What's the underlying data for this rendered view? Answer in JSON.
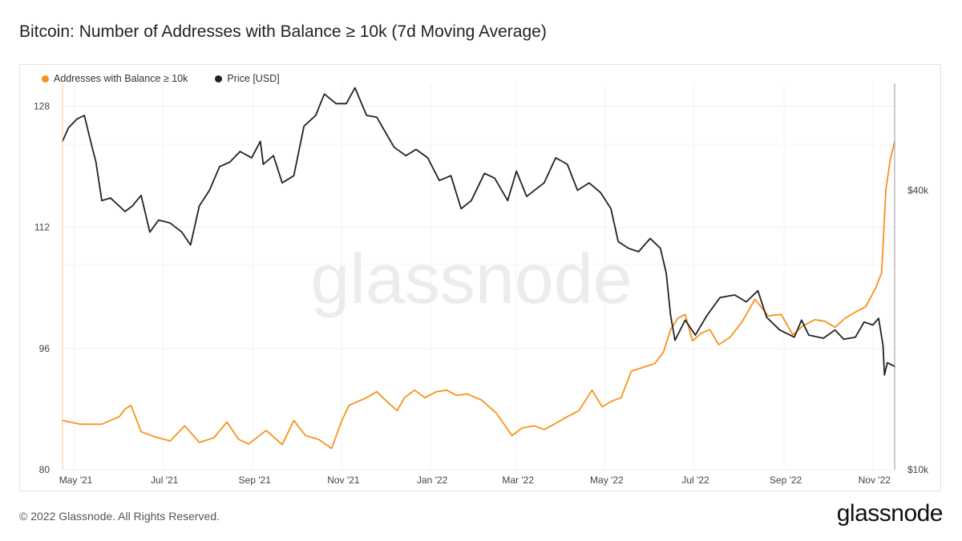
{
  "title": "Bitcoin: Number of Addresses with Balance ≥ 10k (7d Moving Average)",
  "footer": {
    "copyright": "© 2022 Glassnode. All Rights Reserved.",
    "logo": "glassnode"
  },
  "watermark": "glassnode",
  "chart_data": {
    "type": "line",
    "title": "Bitcoin: Number of Addresses with Balance ≥ 10k (7d Moving Average)",
    "legend_position": "top-left",
    "grid": true,
    "x_ticks": [
      "May '21",
      "Jul '21",
      "Sep '21",
      "Nov '21",
      "Jan '22",
      "Mar '22",
      "May '22",
      "Jul '22",
      "Sep '22",
      "Nov '22"
    ],
    "x_range": [
      "2021-04-23",
      "2022-11-16"
    ],
    "y_left": {
      "ticks": [
        "80",
        "96",
        "112",
        "128"
      ],
      "range": [
        80,
        131
      ]
    },
    "y_right": {
      "ticks": [
        "$10k",
        "$40k"
      ],
      "scale": "log",
      "range": [
        10000,
        68000
      ]
    },
    "series": [
      {
        "name": "Addresses with Balance ≥ 10k",
        "axis": "left",
        "color": "#f7931a",
        "points": [
          [
            "2021-04-23",
            86.5
          ],
          [
            "2021-05-05",
            86.0
          ],
          [
            "2021-05-20",
            86.0
          ],
          [
            "2021-06-01",
            87.0
          ],
          [
            "2021-06-05",
            88.0
          ],
          [
            "2021-06-09",
            88.5
          ],
          [
            "2021-06-16",
            85.0
          ],
          [
            "2021-06-26",
            84.3
          ],
          [
            "2021-07-06",
            83.8
          ],
          [
            "2021-07-16",
            85.8
          ],
          [
            "2021-07-26",
            83.6
          ],
          [
            "2021-08-05",
            84.2
          ],
          [
            "2021-08-14",
            86.3
          ],
          [
            "2021-08-22",
            84.0
          ],
          [
            "2021-08-29",
            83.4
          ],
          [
            "2021-09-10",
            85.2
          ],
          [
            "2021-09-21",
            83.3
          ],
          [
            "2021-09-29",
            86.5
          ],
          [
            "2021-10-07",
            84.5
          ],
          [
            "2021-10-16",
            84.0
          ],
          [
            "2021-10-25",
            82.8
          ],
          [
            "2021-11-01",
            86.5
          ],
          [
            "2021-11-06",
            88.5
          ],
          [
            "2021-11-18",
            89.5
          ],
          [
            "2021-11-25",
            90.3
          ],
          [
            "2021-12-03",
            88.8
          ],
          [
            "2021-12-09",
            87.8
          ],
          [
            "2021-12-14",
            89.5
          ],
          [
            "2021-12-21",
            90.5
          ],
          [
            "2021-12-28",
            89.5
          ],
          [
            "2022-01-05",
            90.3
          ],
          [
            "2022-01-12",
            90.5
          ],
          [
            "2022-01-19",
            89.8
          ],
          [
            "2022-01-26",
            90.0
          ],
          [
            "2022-02-05",
            89.2
          ],
          [
            "2022-02-15",
            87.5
          ],
          [
            "2022-02-26",
            84.5
          ],
          [
            "2022-03-05",
            85.5
          ],
          [
            "2022-03-13",
            85.8
          ],
          [
            "2022-03-20",
            85.3
          ],
          [
            "2022-03-27",
            86.0
          ],
          [
            "2022-04-05",
            87.0
          ],
          [
            "2022-04-13",
            87.8
          ],
          [
            "2022-04-22",
            90.5
          ],
          [
            "2022-04-29",
            88.3
          ],
          [
            "2022-05-05",
            89.0
          ],
          [
            "2022-05-12",
            89.5
          ],
          [
            "2022-05-19",
            93.0
          ],
          [
            "2022-05-27",
            93.5
          ],
          [
            "2022-06-04",
            94.0
          ],
          [
            "2022-06-10",
            95.5
          ],
          [
            "2022-06-15",
            98.5
          ],
          [
            "2022-06-20",
            100.0
          ],
          [
            "2022-06-25",
            100.5
          ],
          [
            "2022-06-30",
            97.0
          ],
          [
            "2022-07-06",
            98.0
          ],
          [
            "2022-07-12",
            98.5
          ],
          [
            "2022-07-18",
            96.5
          ],
          [
            "2022-07-26",
            97.5
          ],
          [
            "2022-08-03",
            99.5
          ],
          [
            "2022-08-12",
            102.5
          ],
          [
            "2022-08-21",
            100.3
          ],
          [
            "2022-08-30",
            100.5
          ],
          [
            "2022-09-07",
            97.8
          ],
          [
            "2022-09-14",
            99.0
          ],
          [
            "2022-09-22",
            99.8
          ],
          [
            "2022-09-29",
            99.6
          ],
          [
            "2022-10-06",
            98.8
          ],
          [
            "2022-10-13",
            100.0
          ],
          [
            "2022-10-20",
            100.8
          ],
          [
            "2022-10-27",
            101.5
          ],
          [
            "2022-11-03",
            104.0
          ],
          [
            "2022-11-07",
            106.0
          ],
          [
            "2022-11-10",
            117.0
          ],
          [
            "2022-11-13",
            121.0
          ],
          [
            "2022-11-16",
            123.3
          ]
        ]
      },
      {
        "name": "Price [USD]",
        "axis": "right",
        "color": "#222222",
        "points": [
          [
            "2021-04-23",
            51000
          ],
          [
            "2021-04-27",
            54500
          ],
          [
            "2021-05-03",
            57000
          ],
          [
            "2021-05-08",
            58000
          ],
          [
            "2021-05-13",
            50000
          ],
          [
            "2021-05-16",
            46000
          ],
          [
            "2021-05-20",
            38000
          ],
          [
            "2021-05-26",
            38500
          ],
          [
            "2021-06-05",
            36000
          ],
          [
            "2021-06-10",
            37000
          ],
          [
            "2021-06-16",
            39000
          ],
          [
            "2021-06-22",
            32500
          ],
          [
            "2021-06-28",
            34500
          ],
          [
            "2021-07-06",
            34000
          ],
          [
            "2021-07-14",
            32500
          ],
          [
            "2021-07-20",
            30500
          ],
          [
            "2021-07-26",
            37000
          ],
          [
            "2021-08-02",
            40000
          ],
          [
            "2021-08-09",
            45000
          ],
          [
            "2021-08-16",
            46000
          ],
          [
            "2021-08-23",
            48500
          ],
          [
            "2021-08-31",
            47000
          ],
          [
            "2021-09-06",
            51000
          ],
          [
            "2021-09-08",
            45500
          ],
          [
            "2021-09-15",
            47500
          ],
          [
            "2021-09-21",
            41500
          ],
          [
            "2021-09-29",
            43000
          ],
          [
            "2021-10-06",
            55000
          ],
          [
            "2021-10-14",
            58000
          ],
          [
            "2021-10-20",
            64500
          ],
          [
            "2021-10-28",
            61500
          ],
          [
            "2021-11-04",
            61500
          ],
          [
            "2021-11-10",
            66500
          ],
          [
            "2021-11-18",
            58000
          ],
          [
            "2021-11-25",
            57500
          ],
          [
            "2021-12-03",
            52000
          ],
          [
            "2021-12-07",
            49500
          ],
          [
            "2021-12-15",
            47500
          ],
          [
            "2021-12-22",
            49000
          ],
          [
            "2021-12-30",
            47000
          ],
          [
            "2022-01-07",
            42000
          ],
          [
            "2022-01-15",
            43000
          ],
          [
            "2022-01-22",
            36500
          ],
          [
            "2022-01-29",
            38000
          ],
          [
            "2022-02-07",
            43500
          ],
          [
            "2022-02-14",
            42500
          ],
          [
            "2022-02-23",
            38000
          ],
          [
            "2022-03-01",
            44000
          ],
          [
            "2022-03-08",
            38800
          ],
          [
            "2022-03-20",
            41500
          ],
          [
            "2022-03-28",
            47000
          ],
          [
            "2022-04-05",
            45500
          ],
          [
            "2022-04-12",
            40000
          ],
          [
            "2022-04-20",
            41500
          ],
          [
            "2022-04-28",
            39500
          ],
          [
            "2022-05-05",
            36500
          ],
          [
            "2022-05-10",
            31000
          ],
          [
            "2022-05-17",
            30000
          ],
          [
            "2022-05-24",
            29500
          ],
          [
            "2022-06-01",
            31500
          ],
          [
            "2022-06-08",
            30000
          ],
          [
            "2022-06-12",
            26500
          ],
          [
            "2022-06-15",
            21500
          ],
          [
            "2022-06-18",
            19000
          ],
          [
            "2022-06-25",
            21000
          ],
          [
            "2022-07-02",
            19500
          ],
          [
            "2022-07-10",
            21500
          ],
          [
            "2022-07-19",
            23500
          ],
          [
            "2022-07-29",
            23800
          ],
          [
            "2022-08-06",
            23000
          ],
          [
            "2022-08-14",
            24300
          ],
          [
            "2022-08-20",
            21300
          ],
          [
            "2022-08-29",
            20000
          ],
          [
            "2022-09-08",
            19300
          ],
          [
            "2022-09-13",
            21000
          ],
          [
            "2022-09-18",
            19500
          ],
          [
            "2022-09-28",
            19200
          ],
          [
            "2022-10-06",
            20000
          ],
          [
            "2022-10-12",
            19100
          ],
          [
            "2022-10-20",
            19300
          ],
          [
            "2022-10-26",
            20800
          ],
          [
            "2022-11-01",
            20500
          ],
          [
            "2022-11-05",
            21200
          ],
          [
            "2022-11-08",
            18500
          ],
          [
            "2022-11-09",
            16000
          ],
          [
            "2022-11-11",
            17000
          ],
          [
            "2022-11-16",
            16700
          ]
        ]
      }
    ]
  }
}
